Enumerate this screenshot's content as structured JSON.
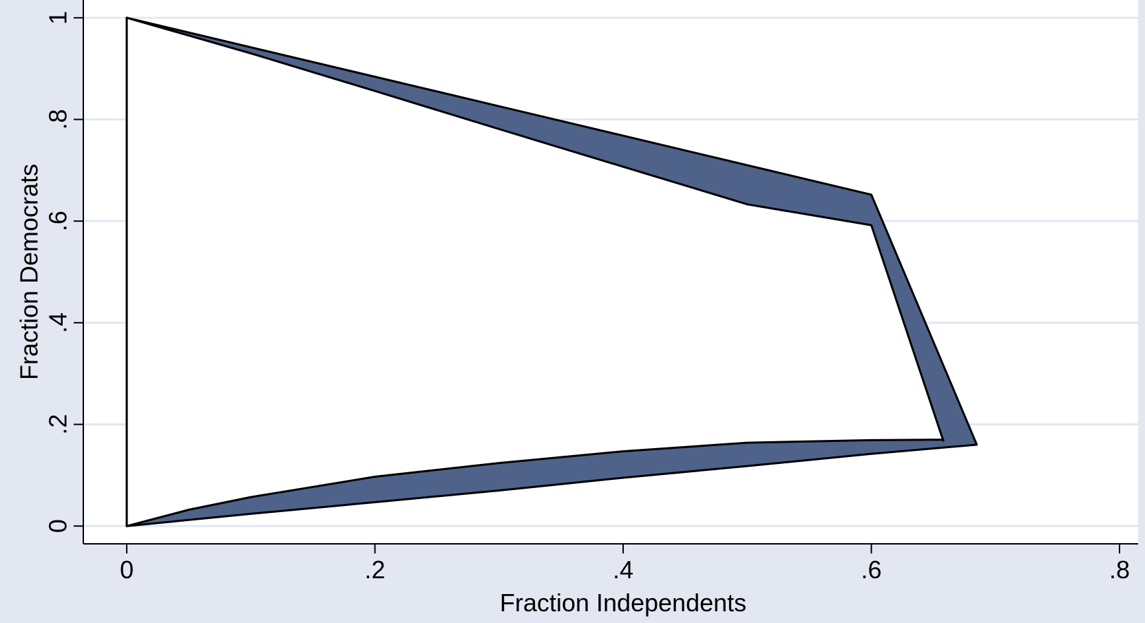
{
  "chart_data": {
    "type": "area",
    "title": "",
    "xlabel": "Fraction Independents",
    "ylabel": "Fraction Democrats",
    "xlim": [
      -0.035,
      0.815
    ],
    "ylim": [
      -0.035,
      1.035
    ],
    "xticks": [
      0,
      0.2,
      0.4,
      0.6,
      0.8
    ],
    "xtick_labels": [
      "0",
      ".2",
      ".4",
      ".6",
      ".8"
    ],
    "yticks": [
      0,
      0.2,
      0.4,
      0.6,
      0.8,
      1
    ],
    "ytick_labels": [
      "0",
      ".2",
      ".4",
      ".6",
      ".8",
      "1"
    ],
    "grid": "horizontal",
    "legend": "none",
    "colors": {
      "background": "#e2e7f1",
      "plot_region": "#ffffff",
      "fill": "#4f628a",
      "outline": "#000000",
      "gridline": "#e2e7f1"
    },
    "regions": [
      {
        "name": "outer",
        "points": [
          [
            0.0,
            1.0
          ],
          [
            0.1,
            0.942
          ],
          [
            0.2,
            0.884
          ],
          [
            0.3,
            0.826
          ],
          [
            0.4,
            0.768
          ],
          [
            0.5,
            0.71
          ],
          [
            0.6,
            0.652
          ],
          [
            0.685,
            0.16
          ],
          [
            0.6,
            0.142
          ],
          [
            0.5,
            0.118
          ],
          [
            0.4,
            0.095
          ],
          [
            0.3,
            0.07
          ],
          [
            0.2,
            0.047
          ],
          [
            0.1,
            0.024
          ],
          [
            0.0,
            0.0
          ]
        ]
      },
      {
        "name": "inner",
        "points": [
          [
            0.0,
            1.0
          ],
          [
            0.1,
            0.93
          ],
          [
            0.2,
            0.856
          ],
          [
            0.3,
            0.781
          ],
          [
            0.4,
            0.707
          ],
          [
            0.5,
            0.633
          ],
          [
            0.6,
            0.592
          ],
          [
            0.658,
            0.168
          ],
          [
            0.658,
            0.17
          ],
          [
            0.6,
            0.169
          ],
          [
            0.5,
            0.164
          ],
          [
            0.4,
            0.147
          ],
          [
            0.3,
            0.124
          ],
          [
            0.2,
            0.097
          ],
          [
            0.1,
            0.057
          ],
          [
            0.05,
            0.032
          ],
          [
            0.0,
            0.0
          ]
        ]
      }
    ]
  }
}
